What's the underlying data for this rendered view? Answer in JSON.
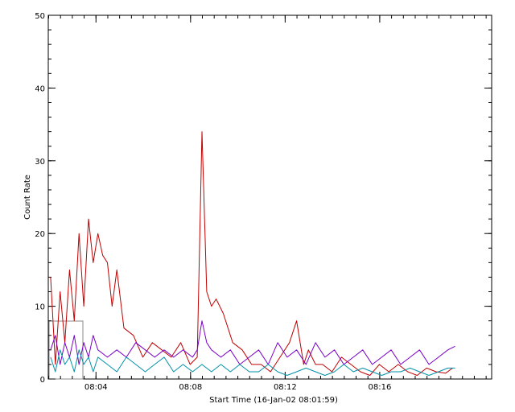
{
  "chart_data": {
    "type": "line",
    "xlabel": "Start Time (16-Jan-02 08:01:59)",
    "ylabel": "Count Rate",
    "ylim": [
      0,
      50
    ],
    "xlim_minutes": [
      0,
      18.75
    ],
    "yticks": [
      "0",
      "10",
      "20",
      "30",
      "40",
      "50"
    ],
    "xticks": [
      {
        "label": "08:04",
        "min": 2.0167
      },
      {
        "label": "08:08",
        "min": 6.0167
      },
      {
        "label": "08:12",
        "min": 10.0167
      },
      {
        "label": "08:16",
        "min": 14.0167
      }
    ],
    "grid": false,
    "series": [
      {
        "color": "#c00000",
        "x": [
          0.1,
          0.3,
          0.5,
          0.7,
          0.9,
          1.1,
          1.3,
          1.5,
          1.7,
          1.9,
          2.1,
          2.3,
          2.5,
          2.7,
          2.9,
          3.2,
          3.6,
          4.0,
          4.4,
          4.8,
          5.2,
          5.6,
          6.0,
          6.3,
          6.5,
          6.7,
          6.9,
          7.1,
          7.4,
          7.8,
          8.2,
          8.6,
          9.0,
          9.4,
          9.8,
          10.2,
          10.5,
          10.8,
          11.0,
          11.3,
          11.6,
          12.0,
          12.4,
          12.8,
          13.2,
          13.6,
          14.0,
          14.4,
          14.8,
          15.2,
          15.6,
          16.0,
          16.4,
          16.8,
          17.1
        ],
        "values": [
          14,
          2,
          12,
          5,
          15,
          8,
          20,
          10,
          22,
          16,
          20,
          17,
          16,
          10,
          15,
          7,
          6,
          3,
          5,
          4,
          3,
          5,
          2,
          3,
          34,
          12,
          10,
          11,
          9,
          5,
          4,
          2,
          2,
          1,
          3,
          5,
          8,
          2,
          4,
          2,
          2,
          1,
          3,
          2,
          1,
          0.5,
          2,
          1,
          2,
          1,
          0.5,
          1.5,
          1,
          0.8,
          1.5
        ]
      },
      {
        "color": "#7b00c8",
        "x": [
          0.1,
          0.3,
          0.5,
          0.7,
          0.9,
          1.1,
          1.3,
          1.5,
          1.7,
          1.9,
          2.1,
          2.5,
          2.9,
          3.3,
          3.7,
          4.1,
          4.5,
          4.9,
          5.3,
          5.7,
          6.1,
          6.3,
          6.5,
          6.7,
          6.9,
          7.3,
          7.7,
          8.1,
          8.5,
          8.9,
          9.3,
          9.7,
          10.1,
          10.5,
          10.9,
          11.3,
          11.7,
          12.1,
          12.5,
          12.9,
          13.3,
          13.7,
          14.1,
          14.5,
          14.9,
          15.3,
          15.7,
          16.1,
          16.5,
          16.9,
          17.2
        ],
        "values": [
          4,
          6,
          2,
          5,
          3,
          6,
          2,
          5,
          3,
          6,
          4,
          3,
          4,
          3,
          5,
          4,
          3,
          4,
          3,
          4,
          3,
          4,
          8,
          5,
          4,
          3,
          4,
          2,
          3,
          4,
          2,
          5,
          3,
          4,
          2,
          5,
          3,
          4,
          2,
          3,
          4,
          2,
          3,
          4,
          2,
          3,
          4,
          2,
          3,
          4,
          4.5
        ]
      },
      {
        "color": "#0090a8",
        "x": [
          0.1,
          0.3,
          0.5,
          0.7,
          0.9,
          1.1,
          1.3,
          1.5,
          1.7,
          1.9,
          2.1,
          2.5,
          2.9,
          3.3,
          3.7,
          4.1,
          4.5,
          4.9,
          5.3,
          5.7,
          6.1,
          6.5,
          6.9,
          7.3,
          7.7,
          8.1,
          8.5,
          8.9,
          9.3,
          9.7,
          10.1,
          10.5,
          10.9,
          11.3,
          11.7,
          12.1,
          12.5,
          12.9,
          13.3,
          13.7,
          14.1,
          14.5,
          14.9,
          15.3,
          15.7,
          16.1,
          16.5,
          16.9,
          17.2
        ],
        "values": [
          3,
          1,
          4,
          2,
          3,
          1,
          4,
          2,
          3,
          1,
          3,
          2,
          1,
          3,
          2,
          1,
          2,
          3,
          1,
          2,
          1,
          2,
          1,
          2,
          1,
          2,
          1,
          1,
          2,
          1,
          0.5,
          1,
          1.5,
          1,
          0.5,
          1,
          2,
          1,
          1.5,
          1,
          0.5,
          1,
          1,
          1.5,
          1,
          0.5,
          1,
          1.5,
          1.5
        ]
      }
    ]
  }
}
